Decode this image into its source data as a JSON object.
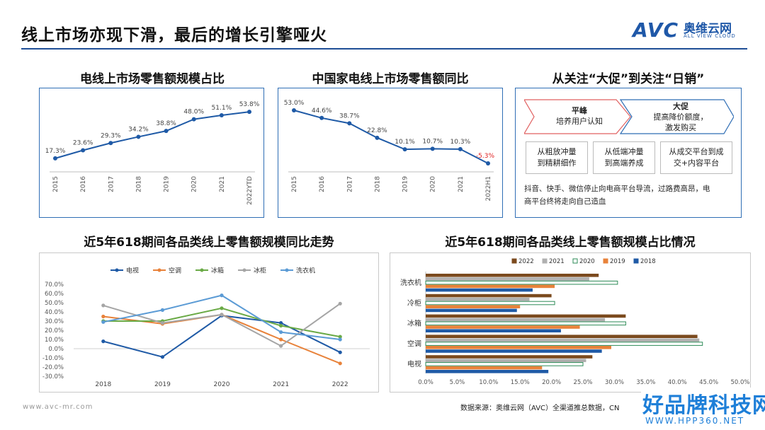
{
  "header": {
    "title": "线上市场亦现下滑，最后的增长引擎哑火",
    "logo": {
      "abbr": "AVC",
      "cn": "奥维云网",
      "en": "ALL VIEW CLOUD"
    }
  },
  "colors": {
    "accent": "#1f4e96",
    "line": "#1f5aa6",
    "negative": "#e02020"
  },
  "panel_share": {
    "title": "电线上市场零售额规模占比"
  },
  "panel_yoy": {
    "title": "中国家电线上市场零售额同比"
  },
  "panel_shift": {
    "title": "从关注“大促”到关注“日销”",
    "arrow1": {
      "title": "平峰",
      "text": "培养用户认知"
    },
    "arrow2": {
      "title": "大促",
      "line1": "提高降价额度，",
      "line2": "激发购买"
    },
    "boxes": [
      {
        "line1": "从粗放冲量",
        "line2": "到精耕细作"
      },
      {
        "line1": "从低端冲量",
        "line2": "到高端养成"
      },
      {
        "line1": "从成交平台到成",
        "line2": "交+内容平台"
      }
    ],
    "desc_line1": "抖音、快手、微信停止向电商平台导流，过路费高昂，电",
    "desc_line2": "商平台终将走向自己造血"
  },
  "panel_trend": {
    "title": "近5年618期间各品类线上零售额规模同比走势"
  },
  "panel_cat_share": {
    "title": "近5年618期间各品类线上零售额规模占比情况"
  },
  "chart_data": [
    {
      "type": "line",
      "title": "电线上市场零售额规模占比",
      "categories": [
        "2015",
        "2016",
        "2017",
        "2018",
        "2019",
        "2020",
        "2021",
        "2022YTD"
      ],
      "values": [
        17.3,
        23.6,
        29.3,
        34.2,
        38.8,
        48.0,
        51.1,
        53.8
      ],
      "labels": [
        "17.3%",
        "23.6%",
        "29.3%",
        "34.2%",
        "38.8%",
        "48.0%",
        "51.1%",
        "53.8%"
      ],
      "ylim": [
        10,
        60
      ],
      "grid": false
    },
    {
      "type": "line",
      "title": "中国家电线上市场零售额同比",
      "categories": [
        "2015",
        "2016",
        "2017",
        "2018",
        "2019",
        "2020",
        "2021",
        "2022H1"
      ],
      "values": [
        53.0,
        44.6,
        38.7,
        22.8,
        10.1,
        10.7,
        10.3,
        -5.3
      ],
      "labels": [
        "53.0%",
        "44.6%",
        "38.7%",
        "22.8%",
        "10.1%",
        "10.7%",
        "10.3%",
        "-5.3%"
      ],
      "ylim": [
        -10,
        60
      ],
      "grid": false
    },
    {
      "type": "line",
      "title": "近5年618期间各品类线上零售额规模同比走势",
      "categories": [
        "2018",
        "2019",
        "2020",
        "2021",
        "2022"
      ],
      "ylim": [
        -30,
        70
      ],
      "yticks": [
        "70.0%",
        "60.0%",
        "50.0%",
        "40.0%",
        "30.0%",
        "20.0%",
        "10.0%",
        "0.0%",
        "-10.0%",
        "-20.0%",
        "-30.0%"
      ],
      "legend": "top",
      "series": [
        {
          "name": "电视",
          "color": "#1f5aa6",
          "values": [
            8,
            -9,
            36,
            28,
            -4
          ]
        },
        {
          "name": "空调",
          "color": "#e8823a",
          "values": [
            35,
            27,
            37,
            10,
            -16
          ]
        },
        {
          "name": "冰箱",
          "color": "#6aaa46",
          "values": [
            30,
            30,
            44,
            25,
            13
          ]
        },
        {
          "name": "冰柜",
          "color": "#a5a5a5",
          "values": [
            47,
            28,
            37,
            3,
            49
          ]
        },
        {
          "name": "洗衣机",
          "color": "#5b9bd5",
          "values": [
            29,
            42,
            58,
            18,
            10
          ]
        }
      ]
    },
    {
      "type": "bar",
      "orientation": "horizontal",
      "title": "近5年618期间各品类线上零售额规模占比情况",
      "categories": [
        "洗衣机",
        "冷柜",
        "冰箱",
        "空调",
        "电视"
      ],
      "xlim": [
        0,
        50
      ],
      "xticks": [
        "0.0%",
        "5.0%",
        "10.0%",
        "15.0%",
        "20.0%",
        "25.0%",
        "30.0%",
        "35.0%",
        "40.0%",
        "45.0%",
        "50.0%"
      ],
      "legend": "top",
      "series": [
        {
          "name": "2022",
          "color": "#7b4a1e",
          "values": [
            27.5,
            20.0,
            31.8,
            43.2,
            26.5
          ]
        },
        {
          "name": "2021",
          "color": "#b0b0b0",
          "values": [
            26.0,
            16.5,
            28.5,
            43.5,
            25.5
          ]
        },
        {
          "name": "2020",
          "color": "#ffffff",
          "stroke": "#2e8b57",
          "values": [
            30.5,
            20.5,
            31.8,
            44.0,
            25.0
          ]
        },
        {
          "name": "2019",
          "color": "#e8823a",
          "values": [
            20.5,
            15.0,
            24.5,
            29.5,
            18.5
          ]
        },
        {
          "name": "2018",
          "color": "#1f5aa6",
          "values": [
            17.0,
            14.5,
            21.5,
            28.0,
            19.5
          ]
        }
      ]
    }
  ],
  "footer": {
    "url": "www.avc-mr.com",
    "source": "数据来源：奥维云网（AVC）全渠道推总数据，CN",
    "watermark": "好品牌科技网",
    "watermark_url": "WWW.HPP360.NET"
  }
}
